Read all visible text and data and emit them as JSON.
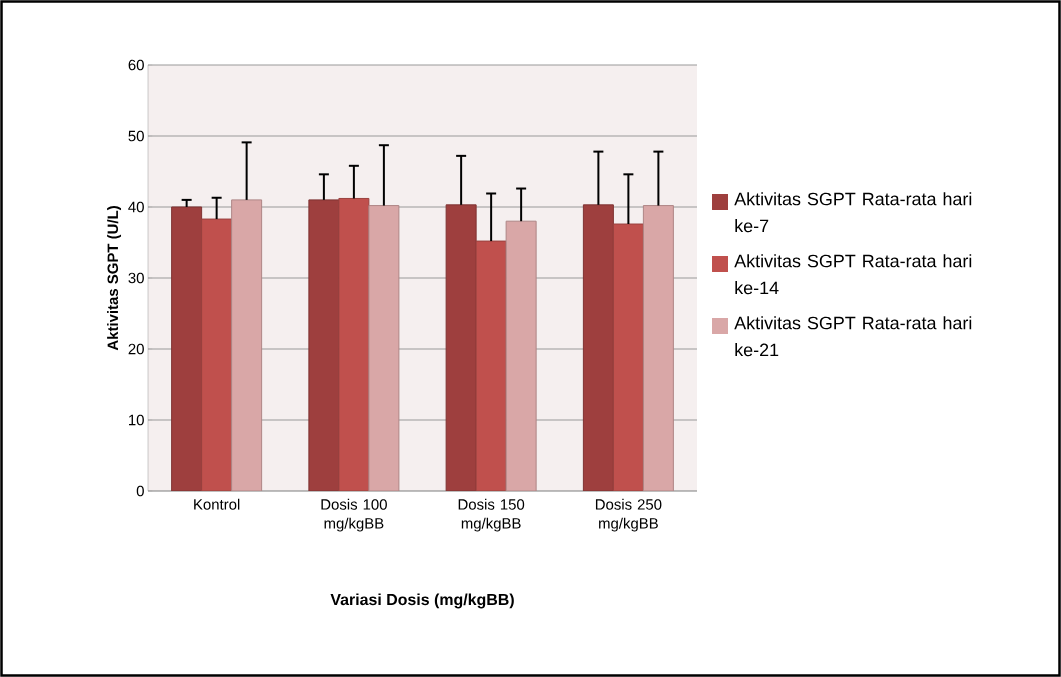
{
  "chart_data": {
    "type": "bar",
    "xlabel": "Variasi Dosis (mg/kgBB)",
    "ylabel": "Aktivitas SGPT (U/L)",
    "categories": [
      "Kontrol",
      "Dosis 100 mg/kgBB",
      "Dosis 150 mg/kgBB",
      "Dosis 250 mg/kgBB"
    ],
    "series": [
      {
        "name": "Aktivitas SGPT Rata-rata hari ke-7",
        "color": "#9e3f3e",
        "values": [
          40.0,
          41.0,
          40.3,
          40.3
        ],
        "errors": [
          1.0,
          3.6,
          6.9,
          7.5
        ]
      },
      {
        "name": "Aktivitas SGPT Rata-rata hari ke-14",
        "color": "#c0504d",
        "values": [
          38.3,
          41.2,
          35.2,
          37.6
        ],
        "errors": [
          3.0,
          4.6,
          6.7,
          7.0
        ]
      },
      {
        "name": "Aktivitas SGPT Rata-rata hari ke-21",
        "color": "#d9a7a7",
        "values": [
          41.0,
          40.2,
          38.0,
          40.2
        ],
        "errors": [
          8.1,
          8.5,
          4.6,
          7.6
        ]
      }
    ],
    "ylim": [
      0,
      60
    ],
    "yticks": [
      0,
      10,
      20,
      30,
      40,
      50,
      60
    ],
    "grid": "y",
    "legend": "right"
  }
}
